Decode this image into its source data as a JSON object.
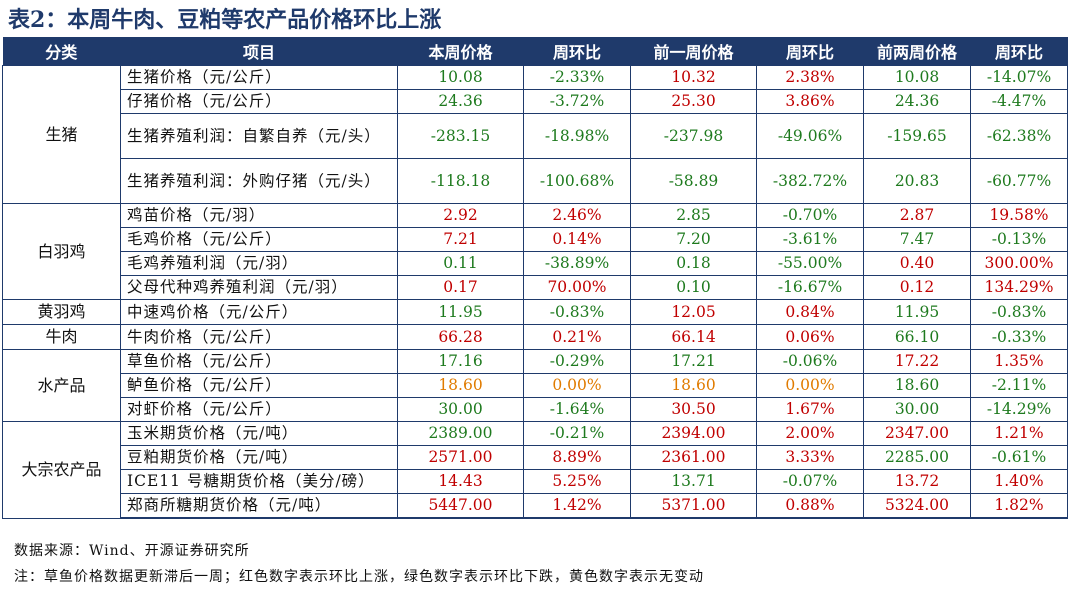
{
  "title": "表2：本周牛肉、豆粕等农产品价格环比上涨",
  "headers": [
    "分类",
    "项目",
    "本周价格",
    "周环比",
    "前一周价格",
    "周环比",
    "前两周价格",
    "周环比"
  ],
  "colors": {
    "header_bg": "#1f3a6b",
    "up": "#c00000",
    "down": "#1e7a1e",
    "flat": "#e07b00"
  },
  "rows": [
    {
      "group": "生猪",
      "item": "生猪价格（元/公斤）",
      "v1": "10.08",
      "c1": "-2.33%",
      "v2": "10.32",
      "c2": "2.38%",
      "v3": "10.08",
      "c3": "-14.07%",
      "color": "green"
    },
    {
      "item": "仔猪价格（元/公斤）",
      "v1": "24.36",
      "c1": "-3.72%",
      "v2": "25.30",
      "c2": "3.86%",
      "v3": "24.36",
      "c3": "-4.47%",
      "color": "green"
    },
    {
      "item": "生猪养殖利润：自繁自养（元/头）",
      "v1": "-283.15",
      "c1": "-18.98%",
      "v2": "-237.98",
      "c2": "-49.06%",
      "v3": "-159.65",
      "c3": "-62.38%",
      "color": "green"
    },
    {
      "item": "生猪养殖利润：外购仔猪（元/头）",
      "v1": "-118.18",
      "c1": "-100.68%",
      "v2": "-58.89",
      "c2": "-382.72%",
      "v3": "20.83",
      "c3": "-60.77%",
      "color": "green"
    },
    {
      "group": "白羽鸡",
      "item": "鸡苗价格（元/羽）",
      "v1": "2.92",
      "c1": "2.46%",
      "v2": "2.85",
      "c2": "-0.70%",
      "v3": "2.87",
      "c3": "19.58%",
      "color": "red"
    },
    {
      "item": "毛鸡价格（元/公斤）",
      "v1": "7.21",
      "c1": "0.14%",
      "v2": "7.20",
      "c2": "-3.61%",
      "v3": "7.47",
      "c3": "-0.13%",
      "color": "red"
    },
    {
      "item": "毛鸡养殖利润（元/羽）",
      "v1": "0.11",
      "c1": "-38.89%",
      "v2": "0.18",
      "c2": "-55.00%",
      "v3": "0.40",
      "c3": "300.00%",
      "color": "green"
    },
    {
      "item": "父母代种鸡养殖利润（元/羽）",
      "v1": "0.17",
      "c1": "70.00%",
      "v2": "0.10",
      "c2": "-16.67%",
      "v3": "0.12",
      "c3": "134.29%",
      "color": "red"
    },
    {
      "group": "黄羽鸡",
      "item": "中速鸡价格（元/公斤）",
      "v1": "11.95",
      "c1": "-0.83%",
      "v2": "12.05",
      "c2": "0.84%",
      "v3": "11.95",
      "c3": "-0.83%",
      "color": "green"
    },
    {
      "group": "牛肉",
      "item": "牛肉价格（元/公斤）",
      "v1": "66.28",
      "c1": "0.21%",
      "v2": "66.14",
      "c2": "0.06%",
      "v3": "66.10",
      "c3": "-0.33%",
      "color": "red"
    },
    {
      "group": "水产品",
      "item": "草鱼价格（元/公斤）",
      "v1": "17.16",
      "c1": "-0.29%",
      "v2": "17.21",
      "c2": "-0.06%",
      "v3": "17.22",
      "c3": "1.35%",
      "color": "green"
    },
    {
      "item": "鲈鱼价格（元/公斤）",
      "v1": "18.60",
      "c1": "0.00%",
      "v2": "18.60",
      "c2": "0.00%",
      "v3": "18.60",
      "c3": "-2.11%",
      "color": "yellow"
    },
    {
      "item": "对虾价格（元/公斤）",
      "v1": "30.00",
      "c1": "-1.64%",
      "v2": "30.50",
      "c2": "1.67%",
      "v3": "30.00",
      "c3": "-14.29%",
      "color": "green"
    },
    {
      "group": "大宗农产品",
      "item": "玉米期货价格（元/吨）",
      "v1": "2389.00",
      "c1": "-0.21%",
      "v2": "2394.00",
      "c2": "2.00%",
      "v3": "2347.00",
      "c3": "1.21%",
      "color": "green"
    },
    {
      "item": "豆粕期货价格（元/吨）",
      "v1": "2571.00",
      "c1": "8.89%",
      "v2": "2361.00",
      "c2": "3.33%",
      "v3": "2285.00",
      "c3": "-0.61%",
      "color": "red"
    },
    {
      "item": "ICE11 号糖期货价格（美分/磅）",
      "v1": "14.43",
      "c1": "5.25%",
      "v2": "13.71",
      "c2": "-0.07%",
      "v3": "13.72",
      "c3": "1.40%",
      "color": "red"
    },
    {
      "item": "郑商所糖期货价格（元/吨）",
      "v1": "5447.00",
      "c1": "1.42%",
      "v2": "5371.00",
      "c2": "0.88%",
      "v3": "5324.00",
      "c3": "1.82%",
      "color": "red"
    }
  ],
  "source": "数据来源：Wind、开源证券研究所",
  "note": "注：草鱼价格数据更新滞后一周；红色数字表示环比上涨，绿色数字表示环比下跌，黄色数字表示无变动"
}
